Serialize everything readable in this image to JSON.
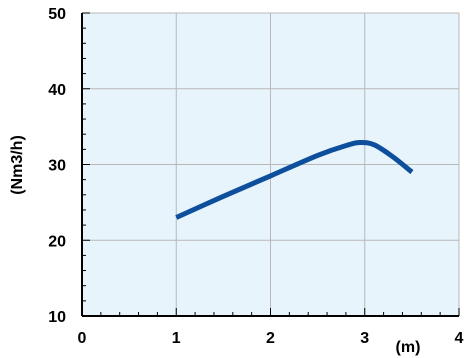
{
  "chart_data": {
    "type": "line",
    "xlim": [
      0,
      4
    ],
    "ylim": [
      10,
      50
    ],
    "x_ticks": [
      0,
      1,
      2,
      3,
      4
    ],
    "y_ticks": [
      10,
      20,
      30,
      40,
      50
    ],
    "x_tick_labels": [
      "0",
      "1",
      "2",
      "3",
      "4"
    ],
    "y_tick_labels": [
      "10",
      "20",
      "30",
      "40",
      "50"
    ],
    "xlabel": "(m)",
    "ylabel": "(Nm3/h)",
    "grid": true,
    "series": [
      {
        "x": [
          1.0,
          1.5,
          2.0,
          2.5,
          2.8,
          2.95,
          3.1,
          3.3,
          3.5
        ],
        "y": [
          23.0,
          25.8,
          28.5,
          31.2,
          32.5,
          32.9,
          32.6,
          31.0,
          29.0
        ]
      }
    ]
  },
  "colors": {
    "plot_background": "#e8f4fc",
    "grid": "#b8b8b8",
    "line": "#0d4f9c",
    "axis": "#000000"
  }
}
